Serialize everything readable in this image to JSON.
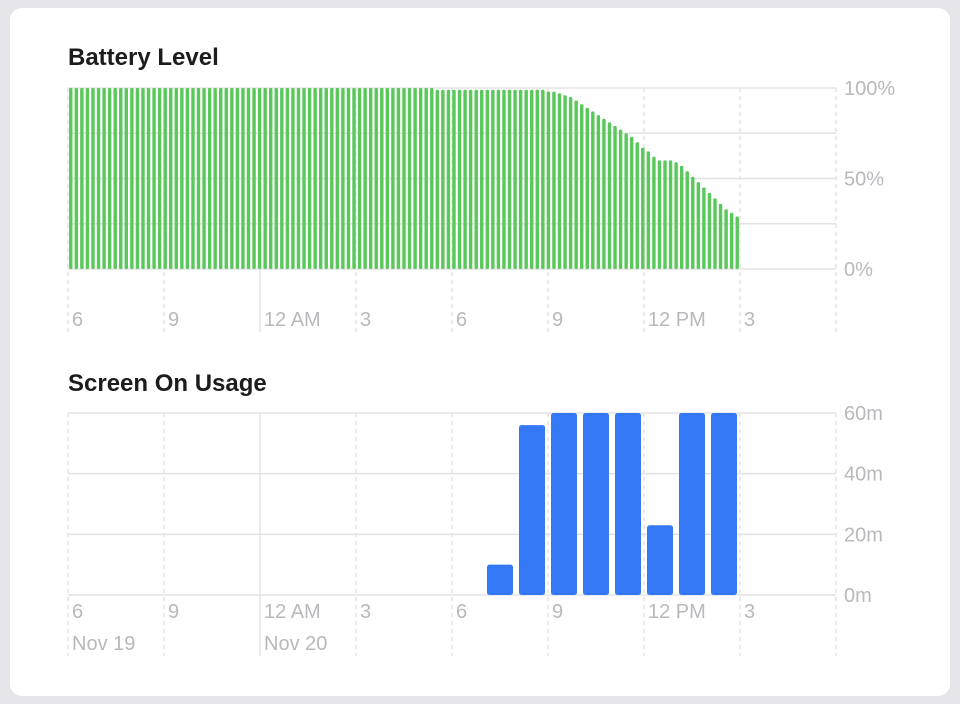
{
  "colors": {
    "battery": "#5ac85a",
    "usage": "#3478f6",
    "grid": "#e3e3e6",
    "text": "#1c1c1e",
    "muted": "#b9b9bd"
  },
  "battery": {
    "title": "Battery Level"
  },
  "usage": {
    "title": "Screen On Usage"
  },
  "chart_data": [
    {
      "type": "bar",
      "title": "Battery Level",
      "x_ticks": [
        "6",
        "9",
        "12 AM",
        "3",
        "6",
        "9",
        "12 PM",
        "3"
      ],
      "y_ticks": [
        "100%",
        "50%",
        "0%"
      ],
      "ylim": [
        0,
        100
      ],
      "interval": "15 minutes",
      "grid": true,
      "values": [
        100,
        100,
        100,
        100,
        100,
        100,
        100,
        100,
        100,
        100,
        100,
        100,
        100,
        100,
        100,
        100,
        100,
        100,
        100,
        100,
        100,
        100,
        100,
        100,
        100,
        100,
        100,
        100,
        100,
        100,
        100,
        100,
        100,
        100,
        100,
        100,
        100,
        100,
        100,
        100,
        100,
        100,
        100,
        100,
        100,
        100,
        100,
        100,
        100,
        100,
        100,
        100,
        100,
        100,
        100,
        100,
        100,
        100,
        100,
        100,
        100,
        100,
        100,
        100,
        100,
        100,
        99,
        99,
        99,
        99,
        99,
        99,
        99,
        99,
        99,
        99,
        99,
        99,
        99,
        99,
        99,
        99,
        99,
        99,
        99,
        99,
        98,
        98,
        97,
        96,
        95,
        93,
        91,
        89,
        87,
        85,
        83,
        81,
        79,
        77,
        75,
        73,
        70,
        67,
        65,
        62,
        60,
        60,
        60,
        59,
        57,
        54,
        51,
        48,
        45,
        42,
        39,
        36,
        33,
        31,
        29
      ]
    },
    {
      "type": "bar",
      "title": "Screen On Usage",
      "categories": [
        "6 PM",
        "7 PM",
        "8 PM",
        "9 PM",
        "10 PM",
        "11 PM",
        "12 AM",
        "1 AM",
        "2 AM",
        "3 AM",
        "4 AM",
        "5 AM",
        "6 AM",
        "7 AM",
        "8 AM",
        "9 AM",
        "10 AM",
        "11 AM",
        "12 PM",
        "1 PM",
        "2 PM",
        "3 PM",
        "4 PM",
        "5 PM"
      ],
      "values": [
        0,
        0,
        0,
        0,
        0,
        0,
        0,
        0,
        0,
        0,
        0,
        0,
        0,
        10,
        56,
        60,
        60,
        60,
        23,
        60,
        60,
        0,
        0,
        0
      ],
      "x_ticks": [
        "6",
        "9",
        "12 AM",
        "3",
        "6",
        "9",
        "12 PM",
        "3"
      ],
      "date_labels": [
        "Nov 19",
        "Nov 20"
      ],
      "y_ticks": [
        "60m",
        "40m",
        "20m",
        "0m"
      ],
      "ylim": [
        0,
        60
      ],
      "grid": true
    }
  ]
}
